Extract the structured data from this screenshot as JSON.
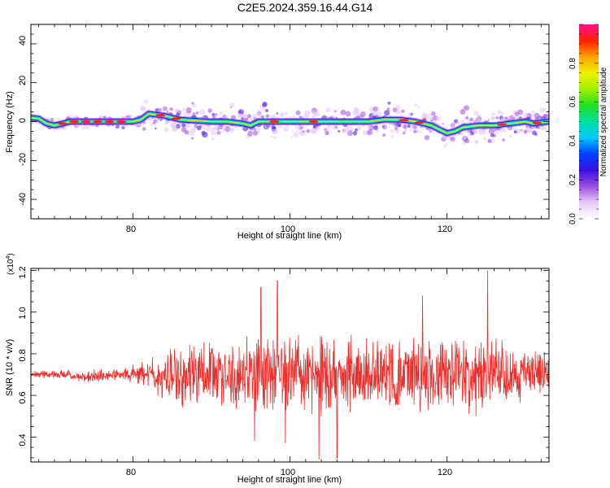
{
  "title": "C2E5.2024.359.16.44.G14",
  "colors": {
    "snr_line": "#e8312e",
    "frame": "#000000"
  },
  "chart_data": [
    {
      "type": "heatmap",
      "xlabel": "Height of straight line (km)",
      "ylabel": "Frequency (Hz)",
      "xlim": [
        67,
        133
      ],
      "ylim": [
        -50,
        50
      ],
      "x_ticks": [
        "80",
        "100",
        "120"
      ],
      "y_ticks": [
        "40",
        "20",
        "0",
        "-20",
        "-40"
      ],
      "colorbar": {
        "label": "Normalized spectral amplitude",
        "range": [
          0,
          1
        ],
        "ticks": [
          "0.0",
          "0.2",
          "0.4",
          "0.6",
          "0.8"
        ],
        "colormap": [
          "#ffffff",
          "#e6c9f6",
          "#9a4fe0",
          "#3a10e0",
          "#0040ff",
          "#00c8ff",
          "#00e0a0",
          "#20e020",
          "#a0f000",
          "#f0f000",
          "#ffa000",
          "#ff2000",
          "#ff1090"
        ]
      },
      "ridge": {
        "x": [
          67,
          68,
          69,
          70,
          72,
          75,
          78,
          80,
          81,
          82,
          84,
          86,
          88,
          90,
          92,
          94,
          95,
          96,
          98,
          100,
          102,
          104,
          106,
          108,
          110,
          112,
          114,
          116,
          117,
          118,
          119,
          120,
          121,
          122,
          124,
          126,
          128,
          130,
          131,
          132,
          133
        ],
        "y": [
          2,
          1.5,
          -1,
          -2,
          0,
          0,
          0,
          0,
          1,
          4,
          3,
          1,
          0.5,
          0,
          0,
          -1,
          -2,
          0,
          0,
          0,
          0,
          0,
          0,
          0,
          0,
          1,
          1,
          0,
          -1,
          -2,
          -4,
          -6,
          -5,
          -3,
          -2,
          -2,
          -1,
          0,
          -1,
          -0.5,
          0
        ],
        "peaks_x": [
          71,
          72.5,
          74,
          75.5,
          77,
          78.5,
          83.5,
          85.5,
          98,
          103,
          114.5,
          116.5,
          127,
          131.5
        ]
      }
    },
    {
      "type": "line",
      "xlabel": "Height of straight line (km)",
      "ylabel": "SNR (10 * v/v)",
      "scale_note": "(x10",
      "scale_exp": "4",
      "xlim": [
        67,
        133
      ],
      "ylim": [
        0.28,
        1.21
      ],
      "x_ticks": [
        "80",
        "100",
        "120"
      ],
      "y_ticks": [
        "1.2",
        "1.0",
        "0.8",
        "0.6",
        "0.4"
      ],
      "series": [
        {
          "color": "#e8312e",
          "baseline": 0.7,
          "envelope_x": [
            67,
            70,
            73,
            76,
            79,
            80,
            81,
            83,
            85,
            88,
            91,
            95,
            99,
            103,
            107,
            111,
            115,
            119,
            123,
            127,
            130,
            133
          ],
          "envelope_amp": [
            0.015,
            0.02,
            0.025,
            0.03,
            0.035,
            0.04,
            0.06,
            0.09,
            0.13,
            0.15,
            0.16,
            0.17,
            0.18,
            0.18,
            0.17,
            0.16,
            0.16,
            0.17,
            0.18,
            0.16,
            0.12,
            0.1
          ],
          "spikes": [
            [
              98.4,
              1.15
            ],
            [
              103.7,
              0.29
            ],
            [
              106.0,
              0.3
            ],
            [
              125.2,
              1.2
            ],
            [
              96.3,
              1.12
            ],
            [
              99.4,
              0.37
            ],
            [
              116.9,
              1.08
            ],
            [
              95.5,
              0.38
            ]
          ]
        }
      ]
    }
  ]
}
